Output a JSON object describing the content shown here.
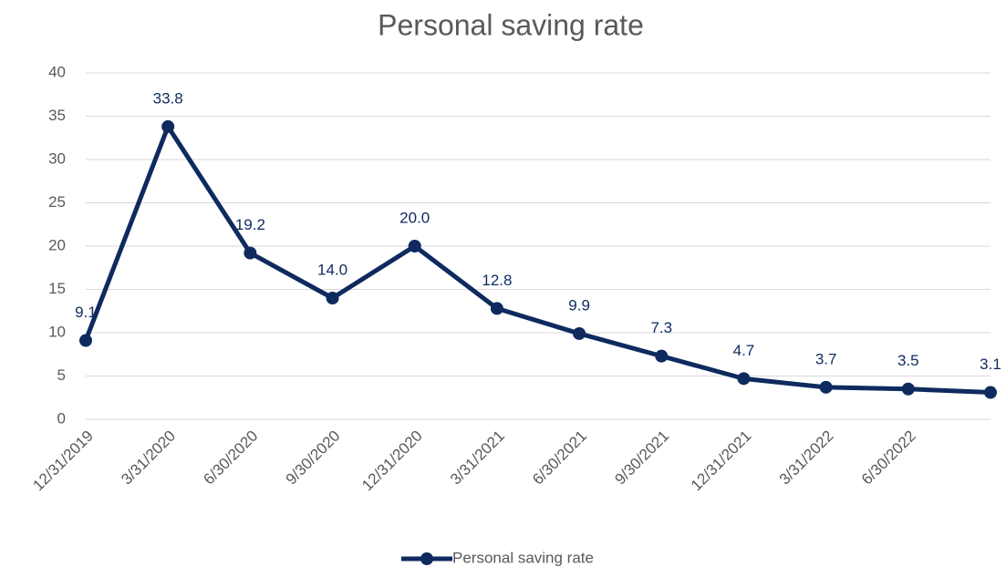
{
  "chart_data": {
    "type": "line",
    "title": "Personal saving rate",
    "categories": [
      "12/31/2019",
      "3/31/2020",
      "6/30/2020",
      "9/30/2020",
      "12/31/2020",
      "3/31/2021",
      "6/30/2021",
      "9/30/2021",
      "12/31/2021",
      "3/31/2022",
      "6/30/2022",
      null
    ],
    "series": [
      {
        "name": "Personal saving rate",
        "color": "#0e2a5e",
        "values": [
          9.1,
          33.8,
          19.2,
          14.0,
          20.0,
          12.8,
          9.9,
          7.3,
          4.7,
          3.7,
          3.5,
          3.1
        ],
        "value_labels": [
          "9.1",
          "33.8",
          "19.2",
          "14.0",
          "20.0",
          "12.8",
          "9.9",
          "7.3",
          "4.7",
          "3.7",
          "3.5",
          "3.1"
        ]
      }
    ],
    "ylim": [
      0,
      40
    ],
    "yticks": [
      0,
      5,
      10,
      15,
      20,
      25,
      30,
      35,
      40
    ],
    "grid": true,
    "legend": "bottom"
  }
}
